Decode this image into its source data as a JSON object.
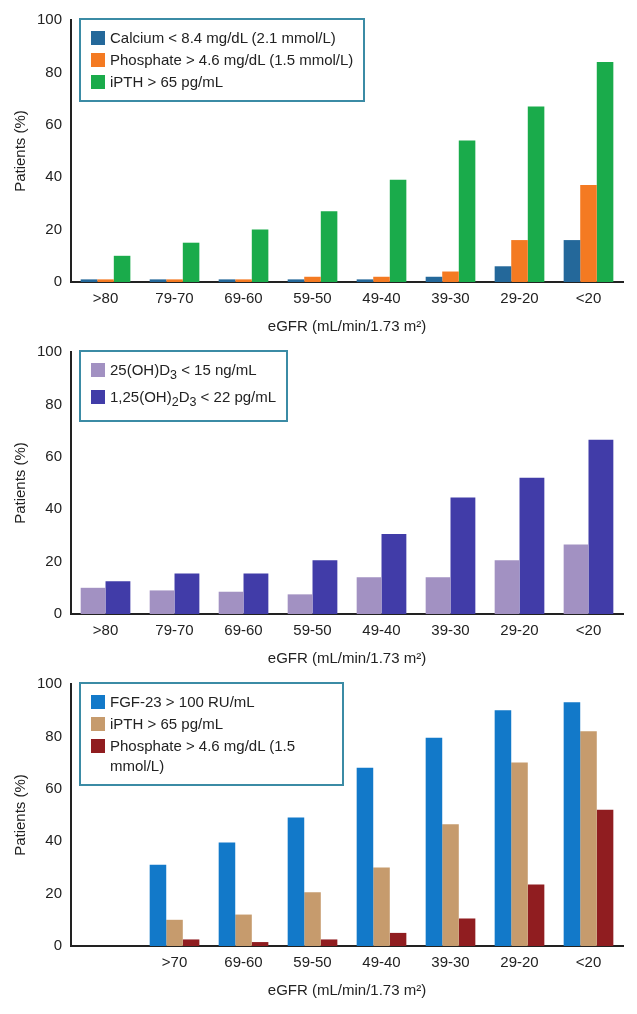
{
  "chart_data": [
    {
      "type": "bar",
      "ylabel": "Patients (%)",
      "xlabel": "eGFR (mL/min/1.73 m²)",
      "categories": [
        ">80",
        "79-70",
        "69-60",
        "59-50",
        "49-40",
        "39-30",
        "29-20",
        "<20"
      ],
      "ylim": [
        0,
        100
      ],
      "yticks": [
        0,
        20,
        40,
        60,
        80,
        100
      ],
      "grid": false,
      "legend": "top left",
      "series": [
        {
          "name": "Calcium < 8.4 mg/dL (2.1 mmol/L)",
          "color": "#24689a",
          "values": [
            1,
            1,
            1,
            1,
            1,
            2,
            6,
            16
          ]
        },
        {
          "name": "Phosphate > 4.6 mg/dL (1.5 mmol/L)",
          "color": "#f47a22",
          "values": [
            1,
            1,
            1,
            2,
            2,
            4,
            16,
            37
          ]
        },
        {
          "name": "iPTH > 65 pg/mL",
          "color": "#1aab4b",
          "values": [
            10,
            15,
            20,
            27,
            39,
            54,
            67,
            84
          ]
        }
      ]
    },
    {
      "type": "bar",
      "ylabel": "Patients (%)",
      "xlabel": "eGFR (mL/min/1.73 m²)",
      "categories": [
        ">80",
        "79-70",
        "69-60",
        "59-50",
        "49-40",
        "39-30",
        "29-20",
        "<20"
      ],
      "ylim": [
        0,
        100
      ],
      "yticks": [
        0,
        20,
        40,
        60,
        80,
        100
      ],
      "grid": false,
      "legend": "top left",
      "series": [
        {
          "name": "25(OH)D$_{3}$ < 15 ng/mL",
          "color": "#a291c2",
          "values": [
            10,
            9,
            8.5,
            7.5,
            14,
            14,
            20.5,
            26.5
          ]
        },
        {
          "name": "1,25(OH)$_{2}$D$_{3}$ < 22 pg/mL",
          "color": "#413ca8",
          "values": [
            12.5,
            15.5,
            15.5,
            20.5,
            30.5,
            44.5,
            52,
            66.5
          ]
        }
      ]
    },
    {
      "type": "bar",
      "ylabel": "Patients (%)",
      "xlabel": "eGFR (mL/min/1.73 m²)",
      "categories": [
        null,
        ">70",
        "69-60",
        "59-50",
        "49-40",
        "39-30",
        "29-20",
        "<20"
      ],
      "ylim": [
        0,
        100
      ],
      "yticks": [
        0,
        20,
        40,
        60,
        80,
        100
      ],
      "grid": false,
      "legend": "top left",
      "series": [
        {
          "name": "FGF-23 > 100 RU/mL",
          "color": "#1279c9",
          "values": [
            null,
            31,
            39.5,
            49,
            68,
            79.5,
            90,
            93
          ]
        },
        {
          "name": "iPTH > 65 pg/mL",
          "color": "#c69b6d",
          "values": [
            null,
            10,
            12,
            20.5,
            30,
            46.5,
            70,
            82
          ]
        },
        {
          "name": "Phosphate > 4.6 mg/dL (1.5 mmol/L)",
          "color": "#901d20",
          "values": [
            null,
            2.5,
            1.5,
            2.5,
            5,
            10.5,
            23.5,
            52
          ]
        }
      ]
    }
  ]
}
